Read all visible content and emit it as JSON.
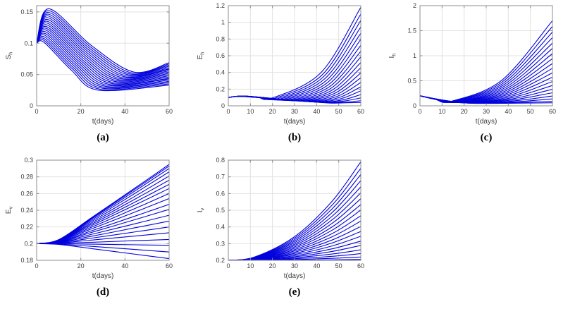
{
  "figure": {
    "background": "#ffffff",
    "line_color": "#0000dd",
    "grid_color": "#e2e2e2",
    "box_color": "#8c8c8c",
    "text_color": "#3c3c3c",
    "caption_color": "#000000"
  },
  "chart_data": [
    {
      "id": "a",
      "caption": "(a)",
      "type": "line",
      "xlabel": "t(days)",
      "ylabel_base": "S",
      "ylabel_sub": "h",
      "xlim": [
        0,
        60
      ],
      "ylim": [
        0,
        0.16
      ],
      "xtick_vals": [
        0,
        20,
        40,
        60
      ],
      "xticks": [
        "0",
        "20",
        "40",
        "60"
      ],
      "ytick_vals": [
        0,
        0.05,
        0.1,
        0.15
      ],
      "yticks": [
        "0",
        "0.05",
        "0.1",
        "0.15"
      ],
      "grid": true,
      "legend": null,
      "family": {
        "count": 20,
        "start": 0.1,
        "shape": "peak_dip",
        "peak_t": [
          3.5,
          5.5
        ],
        "peak_y": [
          0.101,
          0.155
        ],
        "min_t": [
          28,
          44
        ],
        "min_y": [
          0.025,
          0.054
        ],
        "end_values": [
          0.033,
          0.035,
          0.037,
          0.039,
          0.041,
          0.043,
          0.044,
          0.046,
          0.048,
          0.05,
          0.052,
          0.054,
          0.056,
          0.058,
          0.059,
          0.061,
          0.063,
          0.065,
          0.067,
          0.069
        ]
      }
    },
    {
      "id": "b",
      "caption": "(b)",
      "type": "line",
      "xlabel": "t(days)",
      "ylabel_base": "E",
      "ylabel_sub": "h",
      "xlim": [
        0,
        60
      ],
      "ylim": [
        0,
        1.2
      ],
      "xtick_vals": [
        0,
        10,
        20,
        30,
        40,
        50,
        60
      ],
      "xticks": [
        "0",
        "10",
        "20",
        "30",
        "40",
        "50",
        "60"
      ],
      "ytick_vals": [
        0,
        0.2,
        0.4,
        0.6,
        0.8,
        1,
        1.2
      ],
      "yticks": [
        "0",
        "0.2",
        "0.4",
        "0.6",
        "0.8",
        "1",
        "1.2"
      ],
      "grid": true,
      "legend": null,
      "family": {
        "count": 20,
        "start": 0.1,
        "shape": "hump_dip_rise",
        "hump_t": 6,
        "hump_y": [
          0.112,
          0.118
        ],
        "min_t": [
          45,
          20
        ],
        "min_y": [
          0.035,
          0.095
        ],
        "end_values": [
          0.04,
          0.061,
          0.095,
          0.134,
          0.18,
          0.228,
          0.28,
          0.336,
          0.394,
          0.456,
          0.519,
          0.585,
          0.653,
          0.723,
          0.795,
          0.868,
          0.944,
          1.022,
          1.099,
          1.18
        ]
      }
    },
    {
      "id": "c",
      "caption": "(c)",
      "type": "line",
      "xlabel": "t(days)",
      "ylabel_base": "I",
      "ylabel_sub": "h",
      "xlim": [
        0,
        60
      ],
      "ylim": [
        0,
        2
      ],
      "xtick_vals": [
        0,
        10,
        20,
        30,
        40,
        50,
        60
      ],
      "xticks": [
        "0",
        "10",
        "20",
        "30",
        "40",
        "50",
        "60"
      ],
      "ytick_vals": [
        0,
        0.5,
        1,
        1.5,
        2
      ],
      "yticks": [
        "0",
        "0.5",
        "1",
        "1.5",
        "2"
      ],
      "grid": true,
      "legend": null,
      "family": {
        "count": 20,
        "start": 0.2,
        "shape": "dip_rise",
        "min_t": [
          24,
          14
        ],
        "min_y": [
          0.05,
          0.09
        ],
        "end_values": [
          0.06,
          0.091,
          0.138,
          0.196,
          0.261,
          0.331,
          0.406,
          0.485,
          0.57,
          0.659,
          0.749,
          0.844,
          0.942,
          1.042,
          1.146,
          1.251,
          1.361,
          1.472,
          1.584,
          1.7
        ]
      }
    },
    {
      "id": "d",
      "caption": "(d)",
      "type": "line",
      "xlabel": "t(days)",
      "ylabel_base": "E",
      "ylabel_sub": "v",
      "xlim": [
        0,
        60
      ],
      "ylim": [
        0.18,
        0.3
      ],
      "xtick_vals": [
        0,
        20,
        40,
        60
      ],
      "xticks": [
        "0",
        "20",
        "40",
        "60"
      ],
      "ytick_vals": [
        0.18,
        0.2,
        0.22,
        0.24,
        0.26,
        0.28,
        0.3
      ],
      "yticks": [
        "0.18",
        "0.2",
        "0.22",
        "0.24",
        "0.26",
        "0.28",
        "0.3"
      ],
      "grid": true,
      "legend": null,
      "family": {
        "count": 20,
        "start": 0.2,
        "shape": "fan",
        "end_values": [
          0.182,
          0.19,
          0.198,
          0.205,
          0.213,
          0.22,
          0.227,
          0.234,
          0.241,
          0.247,
          0.254,
          0.26,
          0.266,
          0.271,
          0.276,
          0.281,
          0.286,
          0.29,
          0.293,
          0.295
        ]
      }
    },
    {
      "id": "e",
      "caption": "(e)",
      "type": "line",
      "xlabel": "t(days)",
      "ylabel_base": "I",
      "ylabel_sub": "v",
      "xlim": [
        0,
        60
      ],
      "ylim": [
        0.2,
        0.8
      ],
      "xtick_vals": [
        0,
        10,
        20,
        30,
        40,
        50,
        60
      ],
      "xticks": [
        "0",
        "10",
        "20",
        "30",
        "40",
        "50",
        "60"
      ],
      "ytick_vals": [
        0.2,
        0.3,
        0.4,
        0.5,
        0.6,
        0.7,
        0.8
      ],
      "yticks": [
        "0.2",
        "0.3",
        "0.4",
        "0.5",
        "0.6",
        "0.7",
        "0.8"
      ],
      "grid": true,
      "legend": null,
      "family": {
        "count": 20,
        "start": 0.2,
        "shape": "convex",
        "end_values": [
          0.205,
          0.22,
          0.24,
          0.263,
          0.289,
          0.315,
          0.344,
          0.373,
          0.403,
          0.435,
          0.467,
          0.501,
          0.534,
          0.569,
          0.604,
          0.64,
          0.677,
          0.714,
          0.751,
          0.79
        ]
      }
    }
  ]
}
